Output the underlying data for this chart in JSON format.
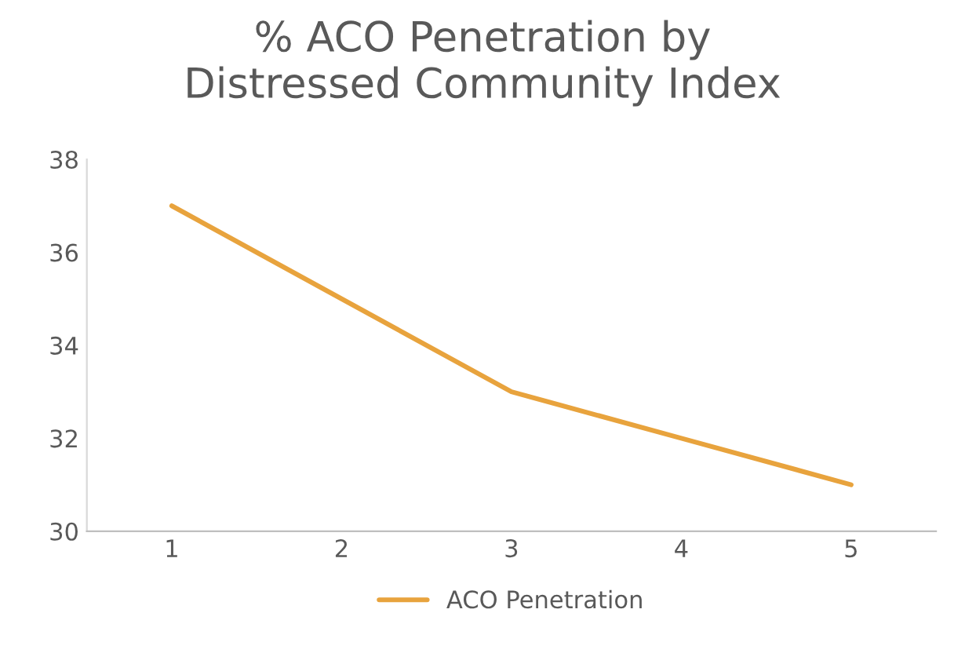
{
  "chart_data": {
    "type": "line",
    "title": "% ACO Penetration by\nDistressed Community Index",
    "categories": [
      "1",
      "2",
      "3",
      "4",
      "5"
    ],
    "series": [
      {
        "name": "ACO Penetration",
        "color": "#e8a33d",
        "values": [
          37,
          35,
          33,
          32,
          31
        ]
      }
    ],
    "ylim": [
      30,
      38
    ],
    "yticks": [
      30,
      32,
      34,
      36,
      38
    ],
    "grid": false,
    "legend": "bottom",
    "marker": "none",
    "line_style": "solid"
  }
}
